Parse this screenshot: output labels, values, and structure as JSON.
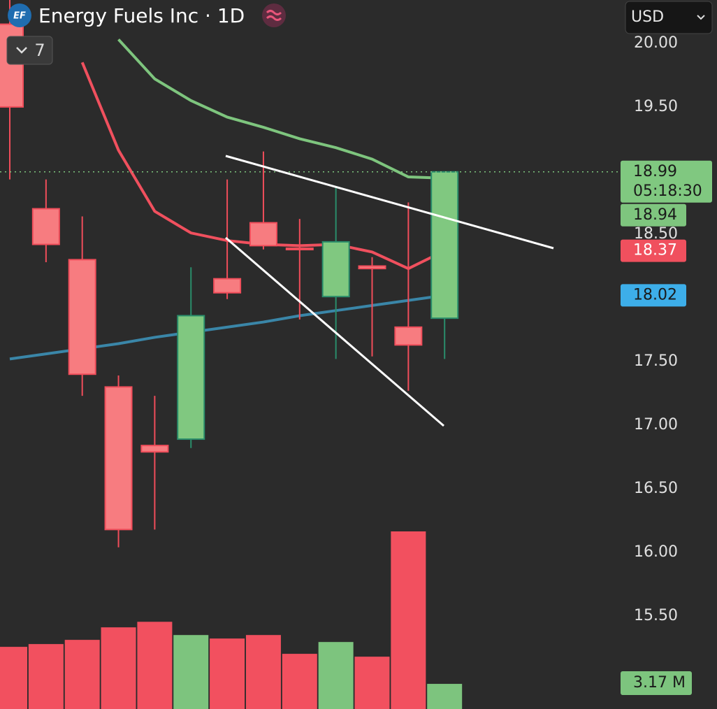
{
  "header": {
    "logo": "EF",
    "title": "Energy Fuels Inc · 1D",
    "indicators": 7,
    "currency": "USD"
  },
  "chart_data": {
    "type": "candlestick",
    "ylim": [
      14.77,
      20.34
    ],
    "yticks": [
      {
        "value": 15.5,
        "label": "15.50"
      },
      {
        "value": 16,
        "label": "16.00"
      },
      {
        "value": 16.5,
        "label": "16.50"
      },
      {
        "value": 17,
        "label": "17.00"
      },
      {
        "value": 17.5,
        "label": "17.50"
      },
      {
        "value": 18.5,
        "label": "18.50"
      },
      {
        "value": 19.5,
        "label": "19.50"
      },
      {
        "value": 20,
        "label": "20.00"
      }
    ],
    "up_color": "#80c880",
    "down_color": "#f77c80",
    "candles": {
      "open": [
        20.15,
        18.7,
        18.3,
        17.3,
        16.84,
        16.89,
        18.15,
        18.59,
        18.39,
        18.01,
        18.25,
        17.77,
        17.84
      ],
      "high": [
        20.4,
        18.93,
        18.64,
        17.39,
        17.23,
        18.24,
        18.93,
        19.15,
        18.62,
        18.87,
        18.32,
        18.75,
        18.99
      ],
      "low": [
        18.93,
        18.28,
        17.23,
        16.04,
        16.18,
        16.82,
        17.99,
        18.38,
        17.83,
        17.52,
        17.54,
        17.27,
        17.52
      ],
      "close": [
        19.5,
        18.42,
        17.4,
        16.18,
        16.79,
        17.86,
        18.04,
        18.41,
        18.38,
        18.44,
        18.23,
        17.63,
        18.99
      ]
    },
    "countdown": "05:18:30",
    "series": [
      {
        "color": "#7ec57e",
        "values": [
          null,
          null,
          null,
          20.03,
          19.72,
          19.55,
          19.42,
          19.34,
          19.25,
          19.18,
          19.09,
          18.95,
          18.94
        ]
      },
      {
        "color": "#f0505e",
        "values": [
          null,
          null,
          19.85,
          19.16,
          18.68,
          18.51,
          18.45,
          18.42,
          18.41,
          18.42,
          18.36,
          18.23,
          18.37
        ]
      },
      {
        "color": "#3a86a8",
        "badge_color": "#3daee9",
        "values": [
          17.52,
          17.56,
          17.6,
          17.64,
          17.69,
          17.73,
          17.77,
          17.81,
          17.86,
          17.9,
          17.94,
          17.98,
          18.02
        ]
      }
    ],
    "volume": {
      "values": [
        7.84,
        8.19,
        8.72,
        10.3,
        11.0,
        9.33,
        8.89,
        9.33,
        6.96,
        8.45,
        6.6,
        22.4,
        3.17
      ],
      "value_labels": [
        null,
        null,
        null,
        null,
        null,
        null,
        null,
        null,
        null,
        null,
        null,
        null,
        "3.17 M"
      ],
      "up_color": "#7dc47e",
      "down_color": "#f2505f"
    }
  }
}
